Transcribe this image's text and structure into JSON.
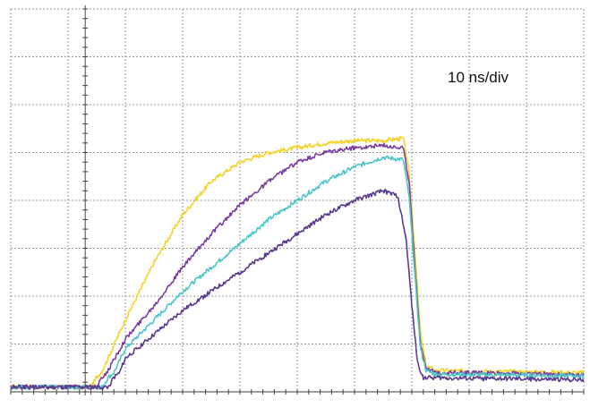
{
  "chart_data": {
    "type": "line",
    "annotation": "10 ns/div",
    "grid": true,
    "divisions": {
      "x": 10,
      "y": 8
    },
    "xlim": [
      0,
      10
    ],
    "ylim": [
      0,
      8
    ],
    "series": [
      {
        "color": "#f5d327",
        "x": [
          0,
          1.4,
          1.5,
          1.6,
          2.0,
          2.5,
          3.0,
          3.5,
          4.0,
          4.5,
          5.0,
          5.5,
          6.0,
          6.5,
          6.85,
          6.95,
          7.05,
          7.15,
          7.25,
          7.4,
          8,
          9,
          10
        ],
        "y": [
          0.1,
          0.1,
          0.3,
          0.45,
          1.5,
          2.7,
          3.7,
          4.4,
          4.8,
          5.0,
          5.1,
          5.2,
          5.25,
          5.25,
          5.3,
          4.6,
          3.0,
          1.2,
          0.55,
          0.45,
          0.43,
          0.42,
          0.4
        ]
      },
      {
        "color": "#7a3fa0",
        "x": [
          0,
          1.5,
          1.6,
          1.7,
          2.0,
          2.5,
          3.0,
          3.5,
          4.0,
          4.5,
          5.0,
          5.5,
          6.0,
          6.5,
          6.85,
          6.95,
          7.05,
          7.15,
          7.25,
          7.4,
          8,
          9,
          10
        ],
        "y": [
          0.1,
          0.1,
          0.3,
          0.45,
          1.1,
          1.8,
          2.6,
          3.3,
          3.9,
          4.4,
          4.8,
          5.0,
          5.1,
          5.15,
          5.1,
          4.4,
          2.7,
          1.0,
          0.5,
          0.4,
          0.4,
          0.38,
          0.36
        ]
      },
      {
        "color": "#4cc6c9",
        "x": [
          0,
          1.6,
          1.7,
          1.8,
          2.0,
          2.5,
          3.0,
          3.5,
          4.0,
          4.5,
          5.0,
          5.5,
          6.0,
          6.5,
          6.85,
          6.95,
          7.05,
          7.15,
          7.25,
          7.4,
          8,
          9,
          10
        ],
        "y": [
          0.1,
          0.1,
          0.3,
          0.4,
          0.9,
          1.5,
          2.1,
          2.6,
          3.1,
          3.6,
          4.0,
          4.4,
          4.7,
          4.9,
          4.85,
          4.1,
          2.5,
          0.9,
          0.45,
          0.37,
          0.36,
          0.35,
          0.33
        ]
      },
      {
        "color": "#5c3a8e",
        "x": [
          0,
          1.7,
          1.8,
          1.9,
          2.0,
          2.5,
          3.0,
          3.5,
          4.0,
          4.5,
          5.0,
          5.5,
          6.0,
          6.5,
          6.75,
          6.9,
          7.0,
          7.1,
          7.2,
          7.4,
          8,
          9,
          10
        ],
        "y": [
          0.1,
          0.1,
          0.3,
          0.4,
          0.7,
          1.2,
          1.7,
          2.1,
          2.5,
          2.9,
          3.3,
          3.7,
          4.0,
          4.2,
          4.1,
          3.2,
          1.8,
          0.6,
          0.3,
          0.3,
          0.28,
          0.27,
          0.25
        ]
      }
    ]
  }
}
